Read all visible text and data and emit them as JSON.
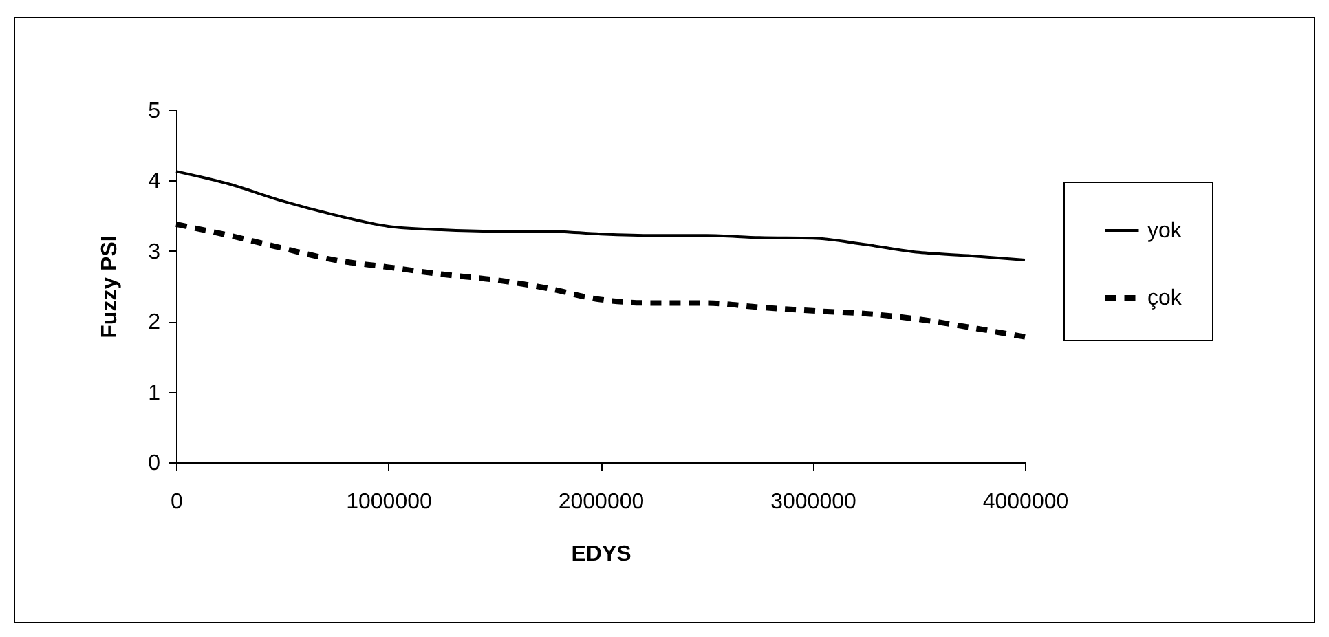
{
  "chart_data": {
    "type": "line",
    "xlabel": "EDYS",
    "ylabel": "Fuzzy PSI",
    "x": [
      0,
      250000,
      500000,
      750000,
      1000000,
      1250000,
      1500000,
      1750000,
      2000000,
      2250000,
      2500000,
      2750000,
      3000000,
      3250000,
      3500000,
      3750000,
      4000000
    ],
    "series": [
      {
        "name": "yok",
        "color": "#000000",
        "line_style": "solid",
        "values": [
          4.13,
          3.95,
          3.71,
          3.51,
          3.35,
          3.3,
          3.28,
          3.28,
          3.24,
          3.22,
          3.22,
          3.19,
          3.18,
          3.09,
          2.98,
          2.93,
          2.87
        ]
      },
      {
        "name": "çok",
        "color": "#000000",
        "line_style": "dashed",
        "values": [
          3.38,
          3.22,
          3.04,
          2.87,
          2.77,
          2.67,
          2.59,
          2.47,
          2.31,
          2.26,
          2.26,
          2.2,
          2.15,
          2.11,
          2.03,
          1.91,
          1.78
        ]
      }
    ],
    "xlim": [
      0,
      4000000
    ],
    "xticks": [
      0,
      1000000,
      2000000,
      3000000,
      4000000
    ],
    "ylim": [
      0,
      5
    ],
    "yticks": [
      0,
      1,
      2,
      3,
      4,
      5
    ],
    "grid": false,
    "legend": "right",
    "marker": "none"
  }
}
